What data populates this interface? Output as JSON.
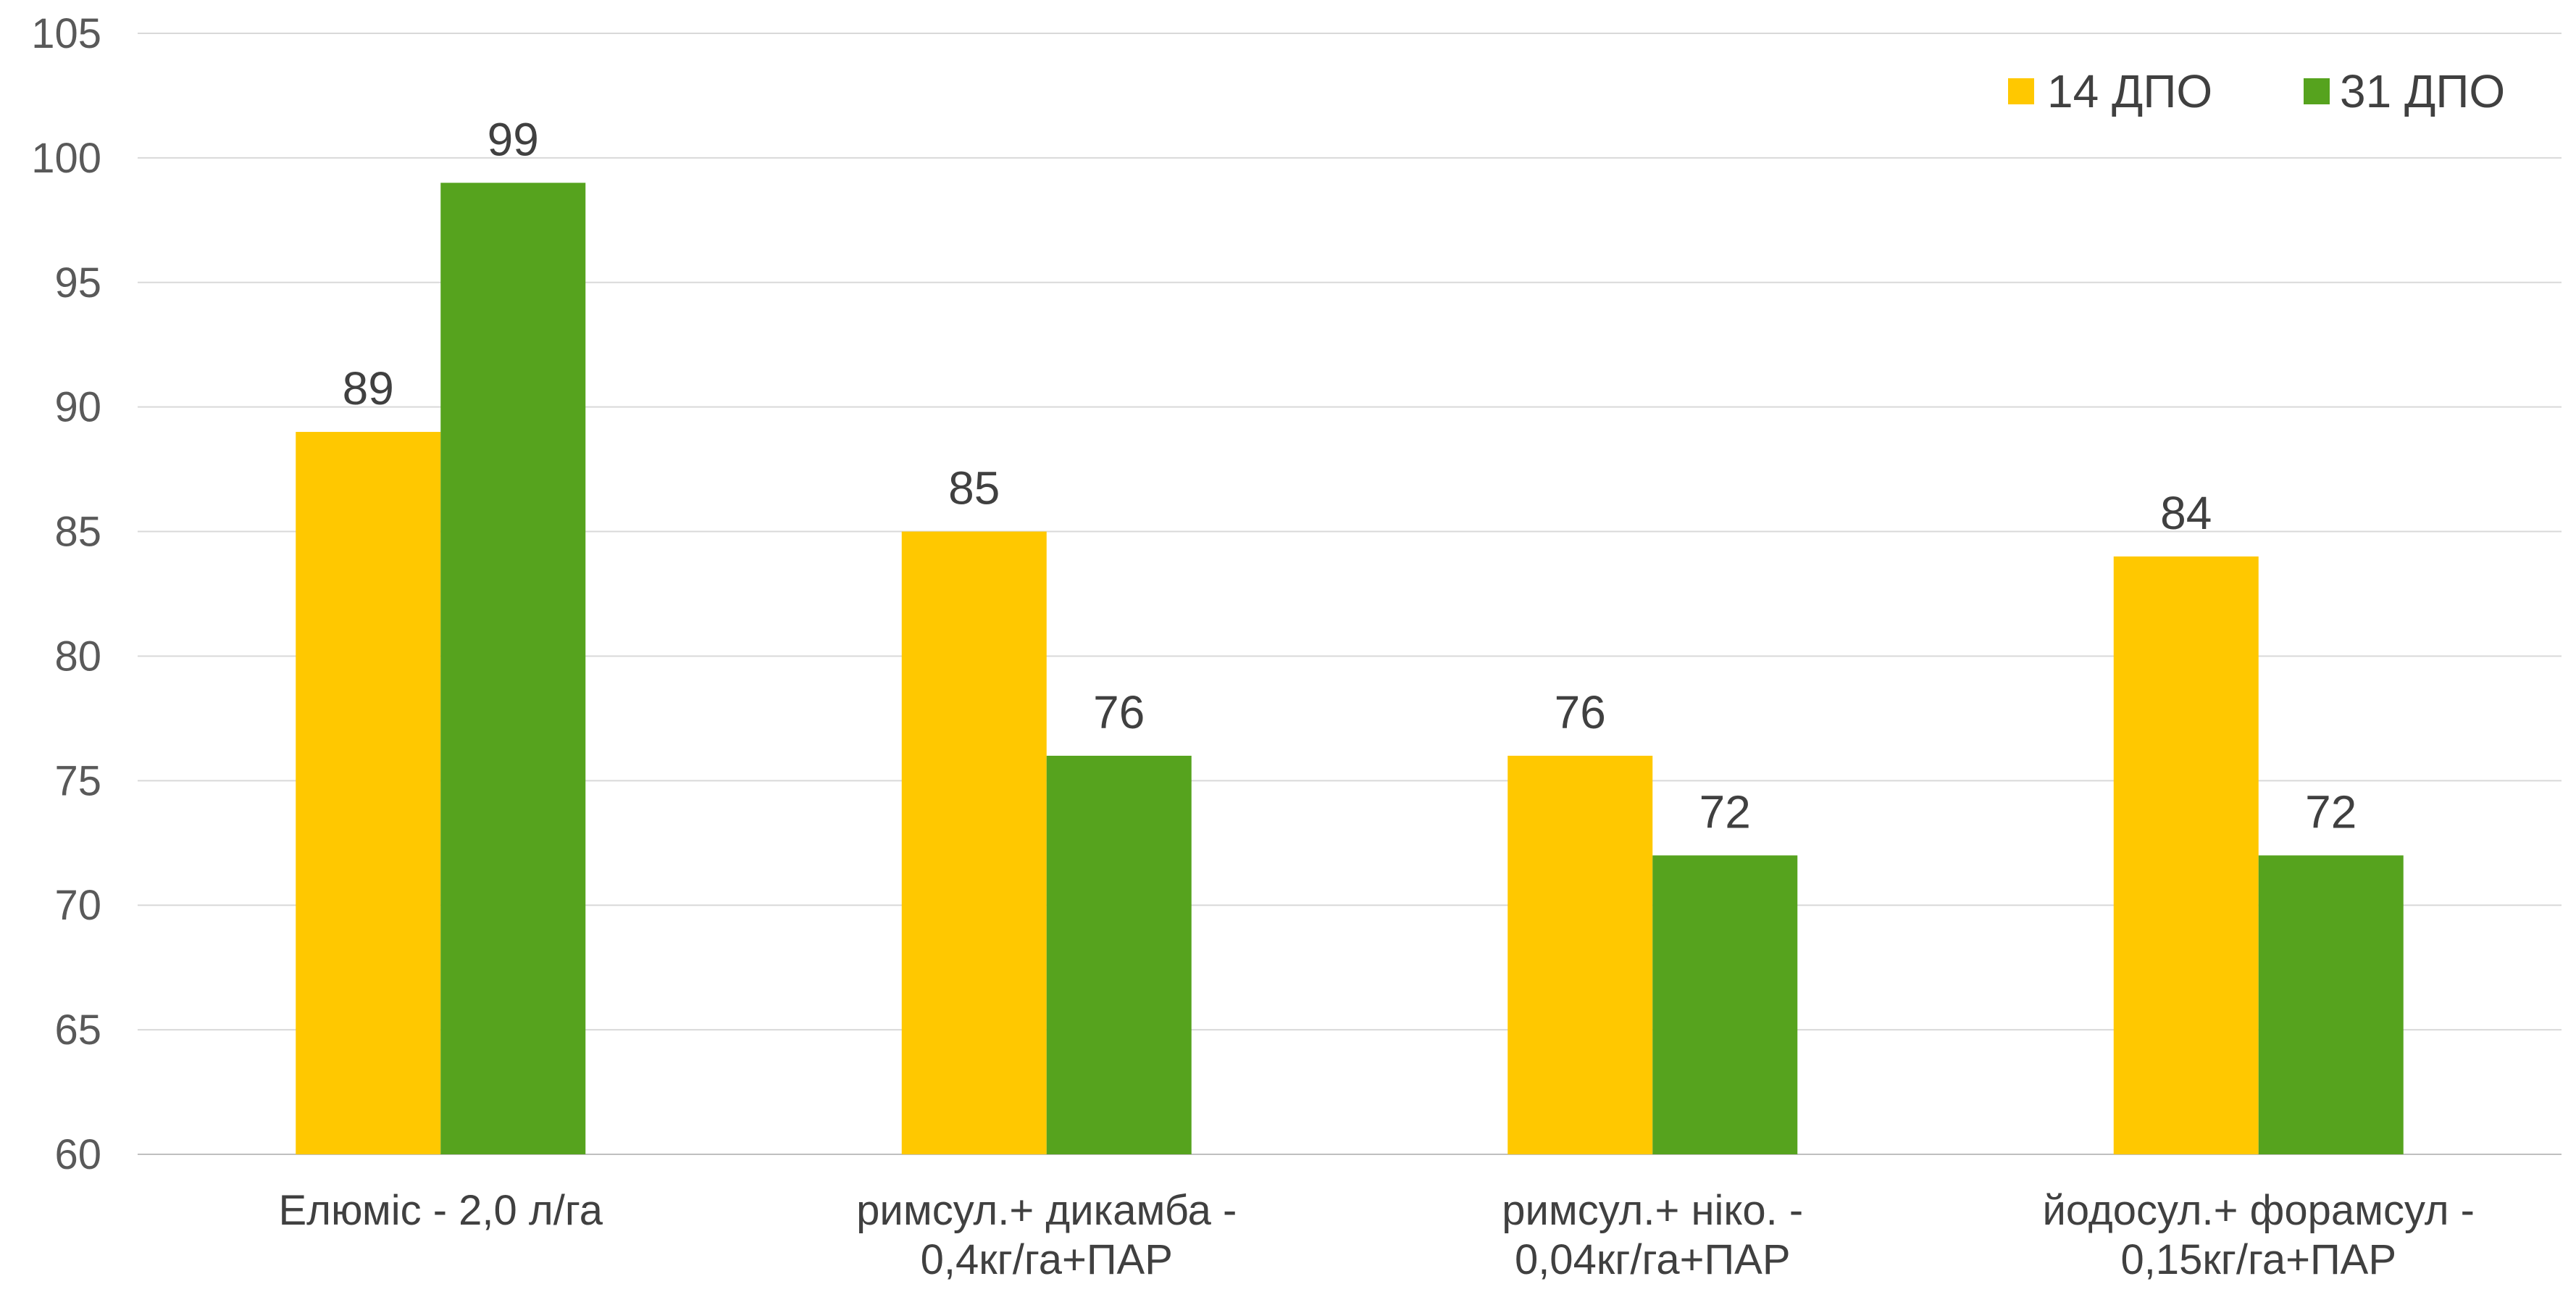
{
  "chart_data": {
    "type": "bar",
    "categories": [
      [
        "Елюміс - 2,0 л/га"
      ],
      [
        "римсул.+ дикамба -",
        "0,4кг/га+ПАР"
      ],
      [
        "римсул.+ ніко. -",
        "0,04кг/га+ПАР"
      ],
      [
        "йодосул.+ форамсул -",
        "0,15кг/га+ПАР"
      ]
    ],
    "series": [
      {
        "name": "14 ДПО",
        "color": "#FFC800",
        "values": [
          89,
          85,
          76,
          84
        ]
      },
      {
        "name": "31 ДПО",
        "color": "#56A31E",
        "values": [
          99,
          76,
          72,
          72
        ]
      }
    ],
    "ylim": [
      60,
      105
    ],
    "yticks": [
      60,
      65,
      70,
      75,
      80,
      85,
      90,
      95,
      100,
      105
    ],
    "grid": true,
    "legend_position": "top-right",
    "data_labels": true,
    "title": "",
    "xlabel": "",
    "ylabel": ""
  }
}
